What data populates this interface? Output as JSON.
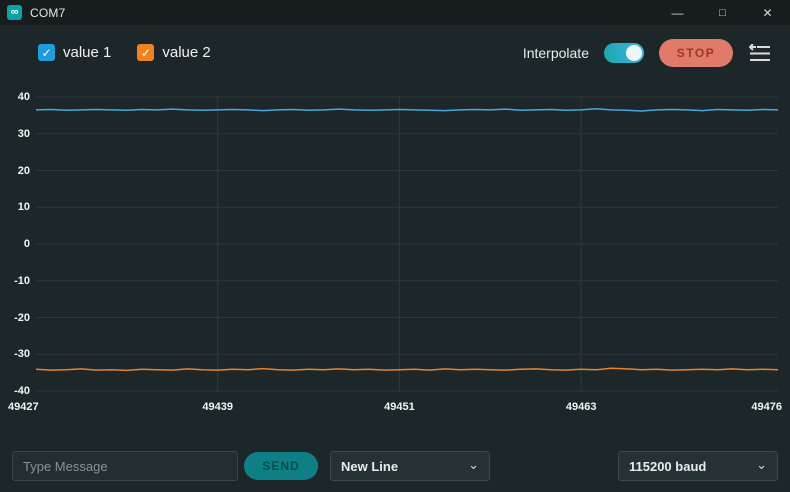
{
  "window": {
    "title": "COM7"
  },
  "icons": {
    "app": "∞",
    "minimize": "—",
    "maximize": "□",
    "close": "✕",
    "check": "✓",
    "chevron": "⌄"
  },
  "toolbar": {
    "series_toggles": [
      {
        "label": "value 1",
        "checked": true,
        "color": "#1f9ddb"
      },
      {
        "label": "value 2",
        "checked": true,
        "color": "#f0831f"
      }
    ],
    "interpolate_label": "Interpolate",
    "interpolate_on": true,
    "stop_label": "STOP"
  },
  "chart_data": {
    "type": "line",
    "title": "",
    "xlabel": "",
    "ylabel": "",
    "ylim": [
      -40,
      40
    ],
    "yticks": [
      40,
      30,
      20,
      10,
      0,
      -10,
      -20,
      -30,
      -40
    ],
    "x_ticks": [
      49427,
      49439,
      49451,
      49463,
      49476
    ],
    "x_range": [
      49427,
      49476
    ],
    "grid": true,
    "legend_position": "top-left-checkboxes",
    "series": [
      {
        "name": "value 1",
        "color": "#45a9e0",
        "values": [
          36.5,
          36.6,
          36.4,
          36.5,
          36.6,
          36.5,
          36.4,
          36.6,
          36.5,
          36.7,
          36.5,
          36.4,
          36.5,
          36.6,
          36.5,
          36.3,
          36.5,
          36.6,
          36.4,
          36.5,
          36.7,
          36.5,
          36.4,
          36.5,
          36.6,
          36.5,
          36.4,
          36.3,
          36.5,
          36.6,
          36.5,
          36.7,
          36.4,
          36.5,
          36.6,
          36.4,
          36.5,
          36.8,
          36.5,
          36.4,
          36.2,
          36.5,
          36.6,
          36.5,
          36.3,
          36.6,
          36.5,
          36.4,
          36.6,
          36.5
        ]
      },
      {
        "name": "value 2",
        "color": "#e8822f",
        "values": [
          -34.1,
          -34.3,
          -34.2,
          -34.0,
          -34.3,
          -34.2,
          -34.4,
          -34.1,
          -34.2,
          -34.3,
          -34.0,
          -34.2,
          -34.3,
          -34.1,
          -34.2,
          -33.9,
          -34.2,
          -34.3,
          -34.1,
          -34.2,
          -34.0,
          -34.2,
          -34.1,
          -34.3,
          -34.2,
          -34.1,
          -34.3,
          -34.0,
          -34.2,
          -34.1,
          -34.2,
          -34.3,
          -34.1,
          -34.0,
          -34.2,
          -34.3,
          -34.1,
          -34.2,
          -33.8,
          -34.0,
          -34.2,
          -34.1,
          -34.3,
          -34.2,
          -34.1,
          -34.2,
          -34.0,
          -34.2,
          -34.1,
          -34.2
        ]
      }
    ]
  },
  "bottom": {
    "message_placeholder": "Type Message",
    "send_label": "SEND",
    "line_ending": "New Line",
    "baud": "115200 baud"
  },
  "colors": {
    "background": "#1d2729",
    "titlebar": "#171d1e",
    "gridline": "#2c383b",
    "stop_button": "#e17b69",
    "send_button": "#0f7f86",
    "toggle_on": "#1da7ad",
    "series1": "#45a9e0",
    "series2": "#e8822f",
    "checkbox_blue": "#1f9ddb",
    "checkbox_orange": "#f0831f"
  }
}
